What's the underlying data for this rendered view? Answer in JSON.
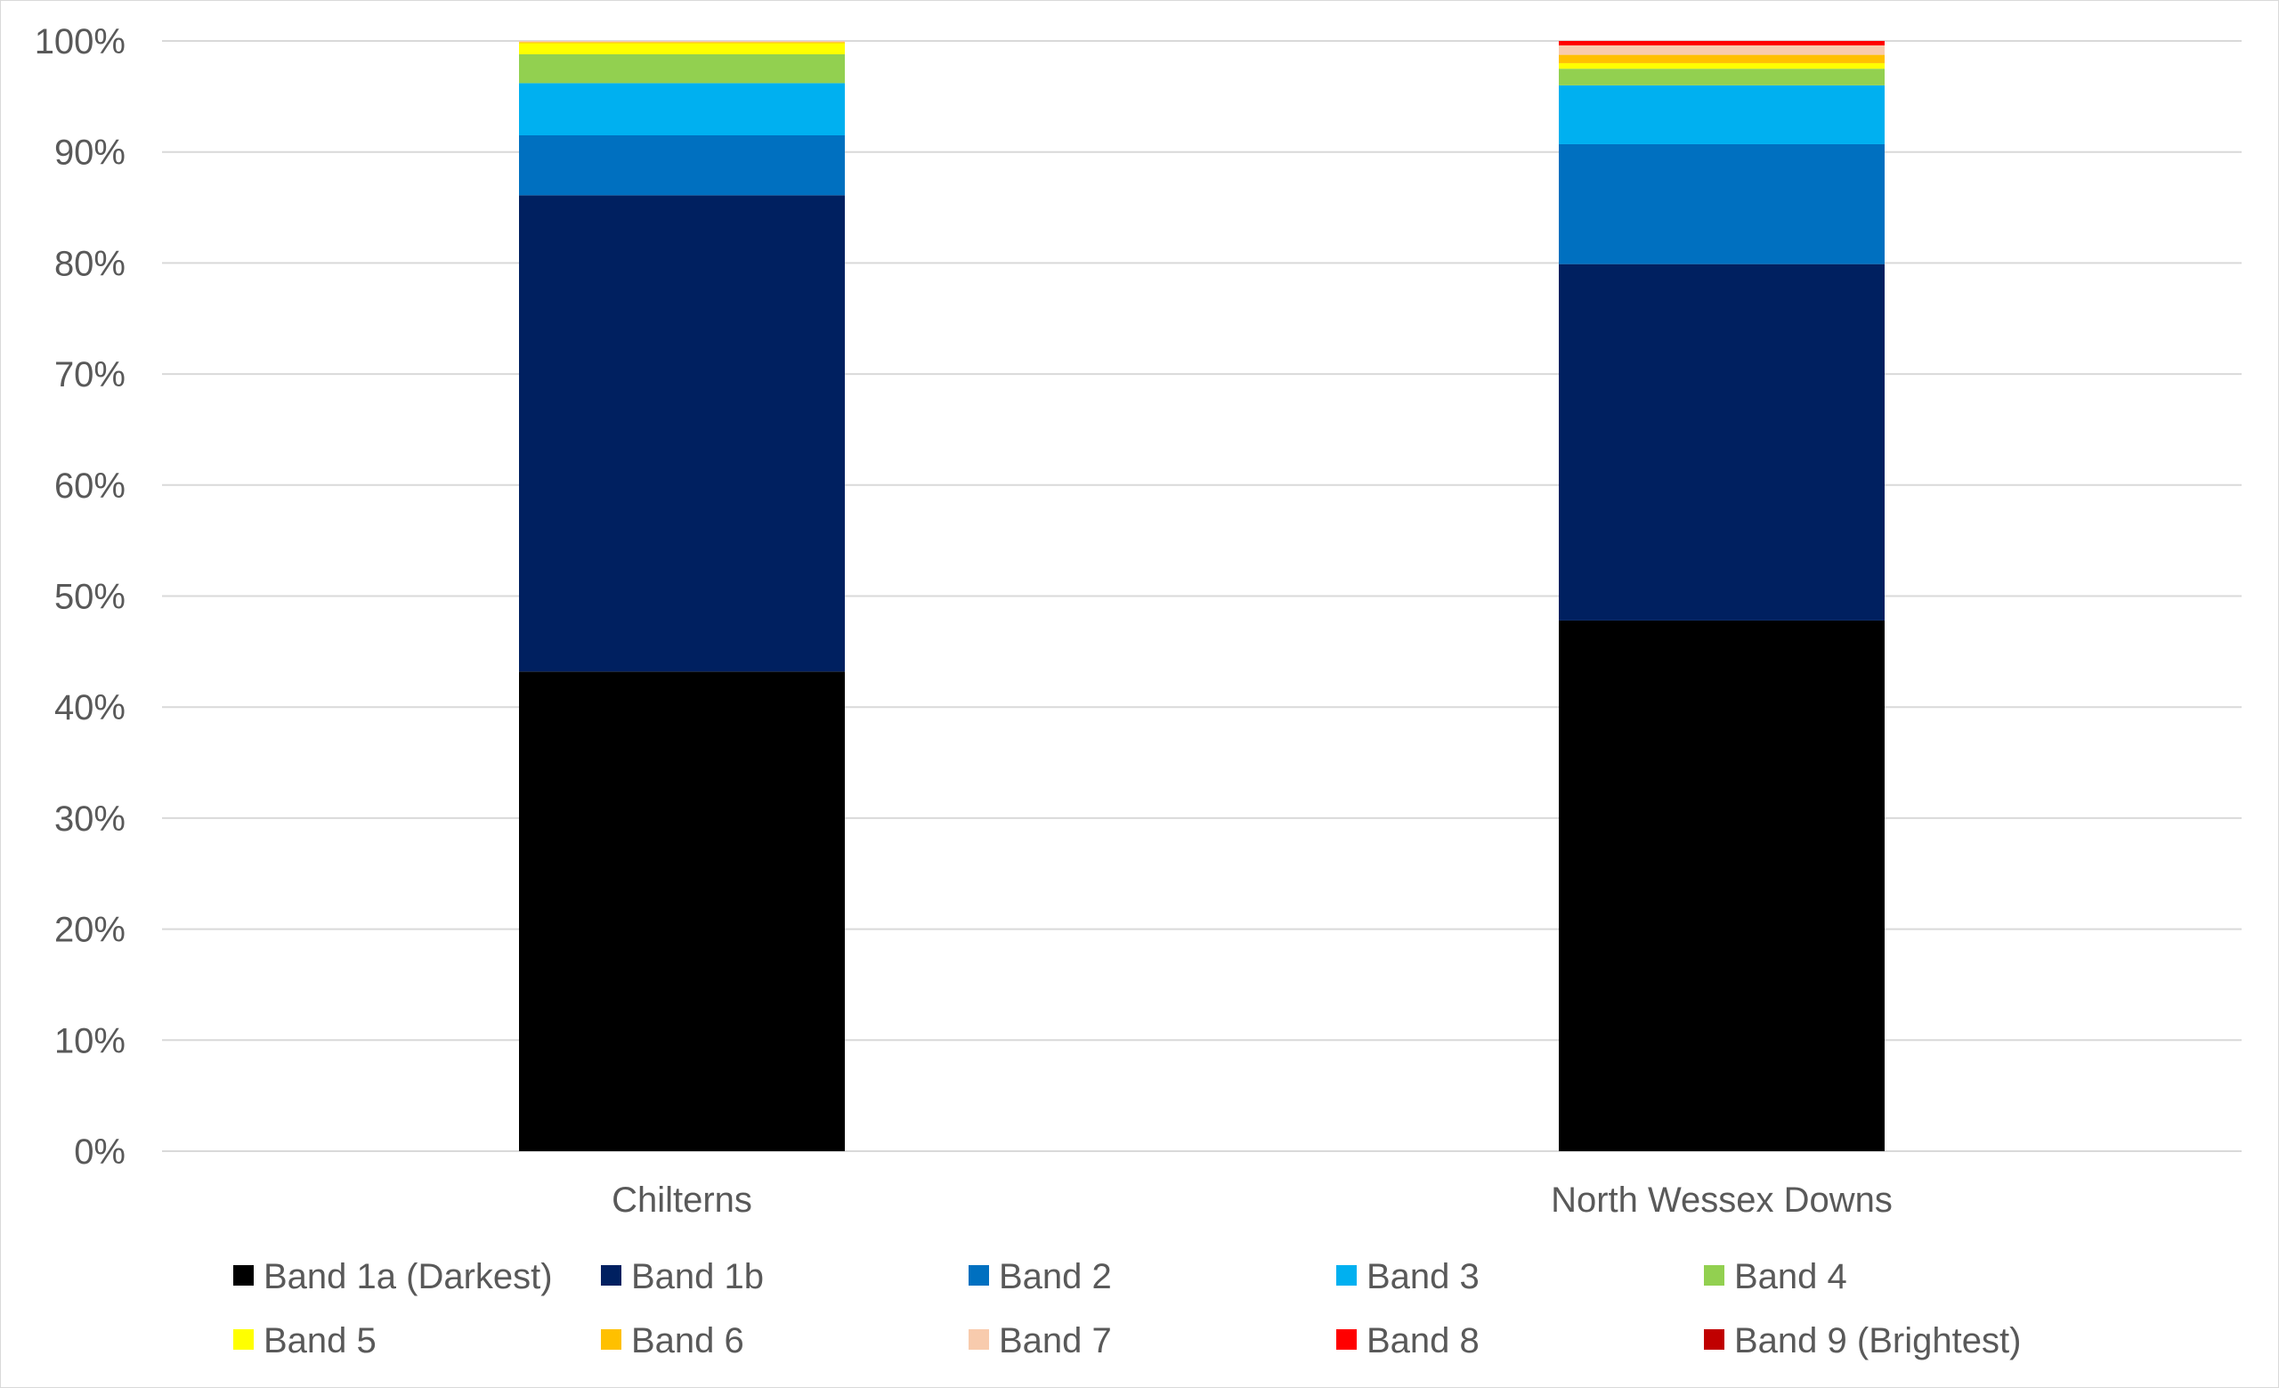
{
  "chart_data": {
    "type": "bar",
    "stacked": true,
    "percent_stacked": true,
    "title": "",
    "xlabel": "",
    "ylabel": "",
    "ylim": [
      0,
      100
    ],
    "y_ticks": [
      "0%",
      "10%",
      "20%",
      "30%",
      "40%",
      "50%",
      "60%",
      "70%",
      "80%",
      "90%",
      "100%"
    ],
    "grid": true,
    "legend_position": "bottom",
    "categories": [
      "Chilterns",
      "North Wessex Downs"
    ],
    "series": [
      {
        "name": "Band 1a (Darkest)",
        "color": "#000000",
        "values": [
          43.2,
          47.8
        ]
      },
      {
        "name": "Band 1b",
        "color": "#002060",
        "values": [
          42.9,
          32.1
        ]
      },
      {
        "name": "Band 2",
        "color": "#0070C0",
        "values": [
          5.4,
          10.8
        ]
      },
      {
        "name": "Band 3",
        "color": "#00B0F0",
        "values": [
          4.7,
          5.3
        ]
      },
      {
        "name": "Band 4",
        "color": "#92D050",
        "values": [
          2.6,
          1.5
        ]
      },
      {
        "name": "Band 5",
        "color": "#FFFF00",
        "values": [
          1.0,
          0.5
        ]
      },
      {
        "name": "Band 6",
        "color": "#FFC000",
        "values": [
          0.1,
          0.75
        ]
      },
      {
        "name": "Band 7",
        "color": "#F8CBAD",
        "values": [
          0.1,
          0.85
        ]
      },
      {
        "name": "Band 8",
        "color": "#FF0000",
        "values": [
          0.0,
          0.4
        ]
      },
      {
        "name": "Band 9 (Brightest)",
        "color": "#C00000",
        "values": [
          0.0,
          0.0
        ]
      }
    ]
  }
}
